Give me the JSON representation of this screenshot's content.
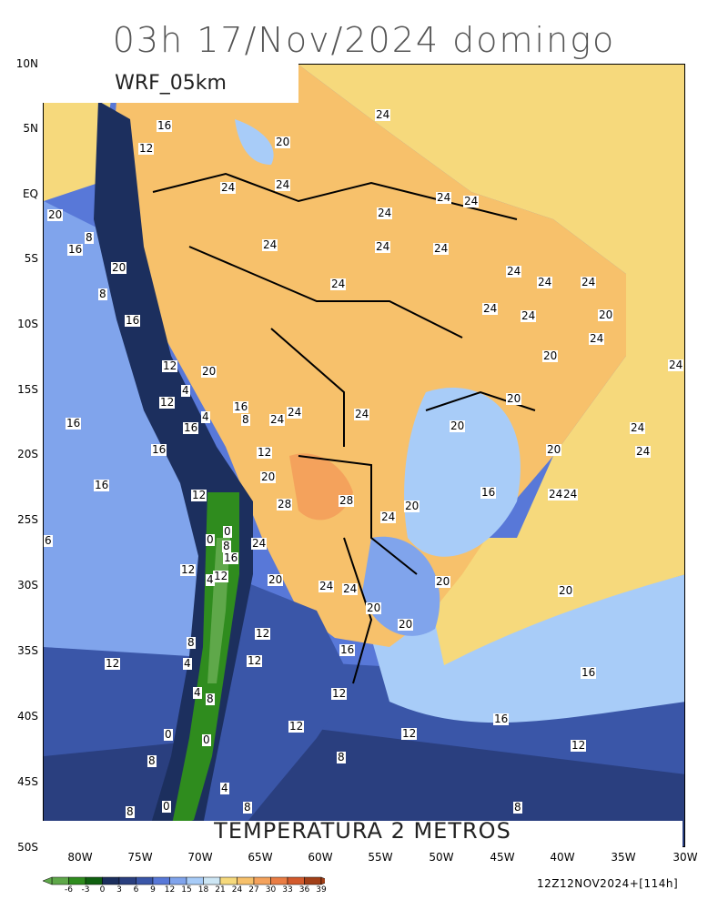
{
  "title": "03h 17/Nov/2024 domingo",
  "model_label": "WRF_05km",
  "variable_label": "TEMPERATURA 2 METROS",
  "run_label": "12Z12NOV2024+[114h]",
  "lat_ticks": [
    "10N",
    "5N",
    "EQ",
    "5S",
    "10S",
    "15S",
    "20S",
    "25S",
    "30S",
    "35S",
    "40S",
    "45S",
    "50S"
  ],
  "lon_ticks": [
    "80W",
    "75W",
    "70W",
    "65W",
    "60W",
    "55W",
    "50W",
    "45W",
    "40W",
    "35W",
    "30W"
  ],
  "colorbar": {
    "labels": [
      "-6",
      "-3",
      "0",
      "3",
      "6",
      "9",
      "12",
      "15",
      "18",
      "21",
      "24",
      "27",
      "30",
      "33",
      "36",
      "39"
    ],
    "colors": [
      "#5fa84a",
      "#2f8c1e",
      "#106010",
      "#1c2f5e",
      "#2a3f7f",
      "#3a56a8",
      "#5878d8",
      "#80a4ec",
      "#a8ccf8",
      "#cde6f4",
      "#f6d97c",
      "#f7c16b",
      "#f4a25c",
      "#ea7d44",
      "#d35a2c",
      "#a24018"
    ]
  },
  "isotherm_labels": [
    "24",
    "16",
    "12",
    "20",
    "8",
    "4",
    "6",
    "28",
    "0"
  ],
  "colors": {
    "ocean_warm": "#f6d97c",
    "land_warm": "#f7c16b",
    "ocean_mid": "#cde6f4",
    "ocean_cool": "#80a4ec",
    "andes_cold": "#1c2f5e",
    "andes_ice": "#2f8c1e"
  }
}
